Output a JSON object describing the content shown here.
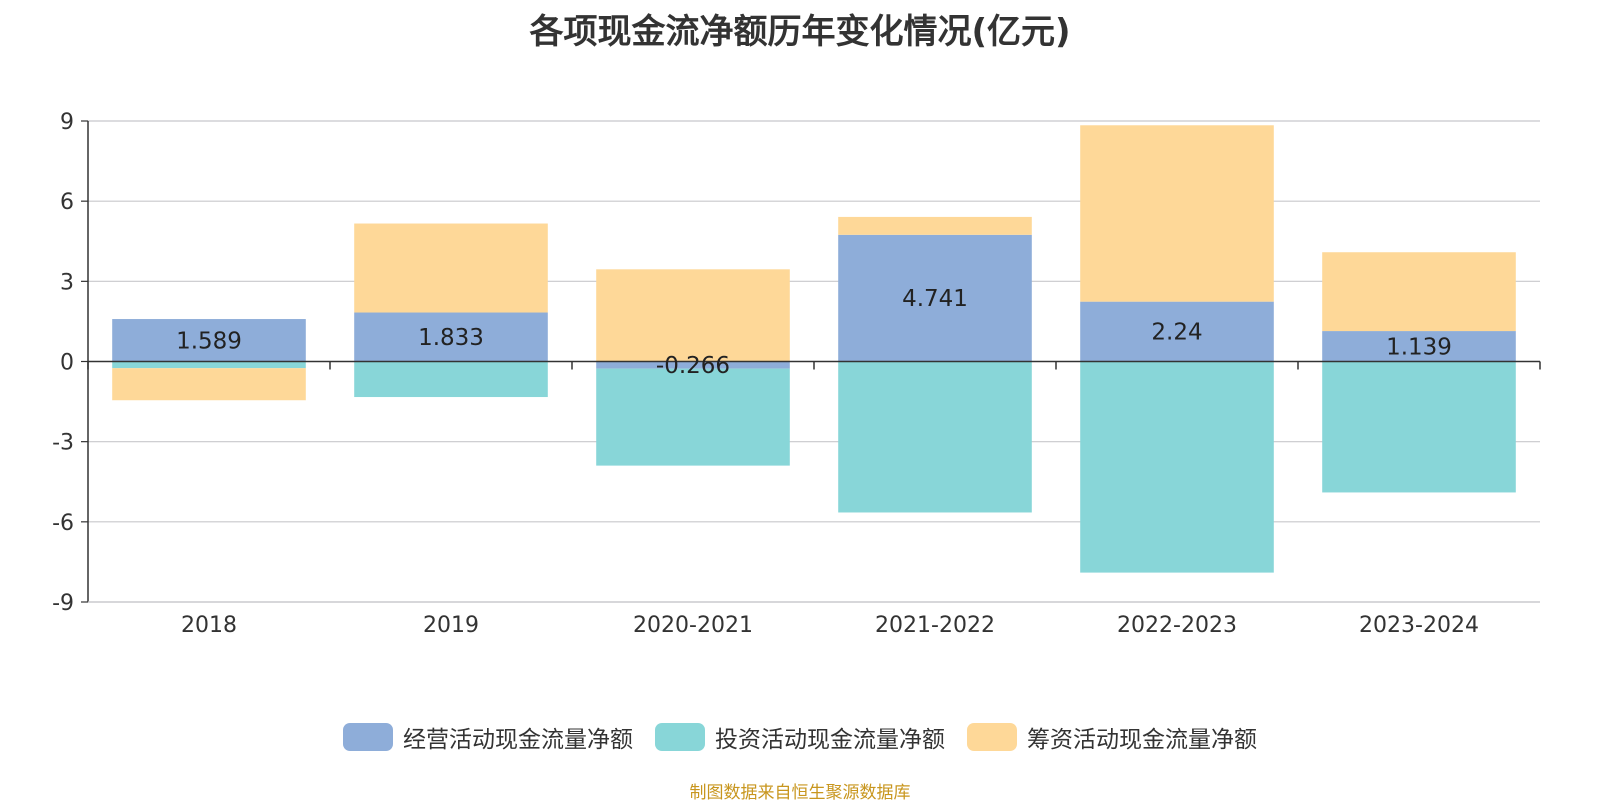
{
  "chart_data": {
    "type": "bar",
    "stacked": true,
    "title": "各项现金流净额历年变化情况(亿元)",
    "categories": [
      "2018",
      "2019",
      "2020-2021",
      "2021-2022",
      "2022-2023",
      "2023-2024"
    ],
    "series": [
      {
        "name": "经营活动现金流量净额",
        "color": "#8eadd9",
        "values": [
          1.589,
          1.833,
          -0.266,
          4.741,
          2.24,
          1.139
        ],
        "labels": [
          "1.589",
          "1.833",
          "-0.266",
          "4.741",
          "2.24",
          "1.139"
        ]
      },
      {
        "name": "投资活动现金流量净额",
        "color": "#88d6d8",
        "values": [
          -0.25,
          -1.33,
          -3.63,
          -5.65,
          -7.9,
          -4.9
        ]
      },
      {
        "name": "筹资活动现金流量净额",
        "color": "#fed898",
        "values": [
          -1.2,
          3.33,
          3.45,
          0.67,
          6.6,
          2.95
        ]
      }
    ],
    "ylim": [
      -9,
      9
    ],
    "yticks": [
      9,
      6,
      3,
      0,
      -3,
      -6,
      -9
    ],
    "grid": true,
    "legend_position": "bottom"
  },
  "source_note": "制图数据来自恒生聚源数据库"
}
